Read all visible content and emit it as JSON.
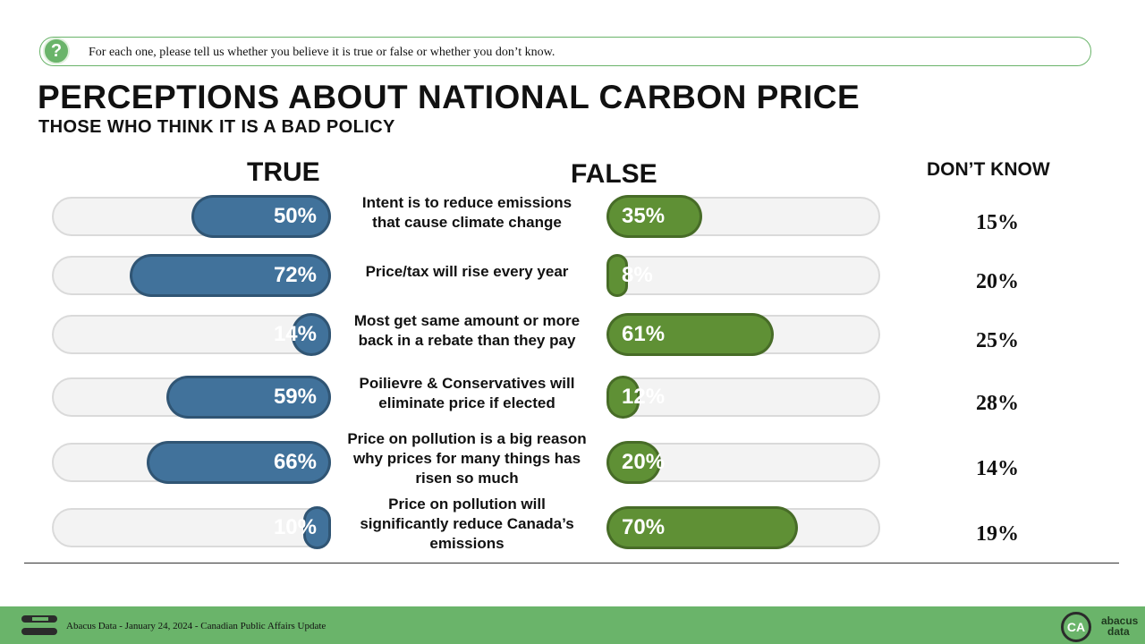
{
  "chart_data": {
    "type": "bar",
    "question_icon": "?",
    "question": "For each one, please tell us whether you believe it is true or false or whether you don’t know.",
    "title": "PERCEPTIONS ABOUT NATIONAL CARBON PRICE",
    "subtitle": "THOSE WHO THINK IT IS A BAD POLICY",
    "categories": [
      "Intent is to reduce emissions that cause climate change",
      "Price/tax will rise every year",
      "Most get same amount or more back in a rebate than they pay",
      "Poilievre & Conservatives will eliminate price if elected",
      "Price on pollution is a big reason why prices for many things has risen so much",
      "Price on pollution will significantly reduce Canada’s emissions"
    ],
    "xlim": [
      0,
      100
    ],
    "series": [
      {
        "name": "TRUE",
        "color": "#41729b",
        "values": [
          50,
          72,
          14,
          59,
          66,
          10
        ],
        "value_labels": [
          "50%",
          "72%",
          "14%",
          "59%",
          "66%",
          "10%"
        ]
      },
      {
        "name": "FALSE",
        "color": "#5f9035",
        "values": [
          35,
          8,
          61,
          12,
          20,
          70
        ],
        "value_labels": [
          "35%",
          "8%",
          "61%",
          "12%",
          "20%",
          "70%"
        ]
      },
      {
        "name": "DON’T KNOW",
        "values": [
          15,
          20,
          25,
          28,
          14,
          19
        ],
        "value_labels": [
          "15%",
          "20%",
          "25%",
          "28%",
          "14%",
          "19%"
        ]
      }
    ],
    "footer": "Abacus Data - January 24, 2024 - Canadian Public Affairs Update",
    "logo_badge": "CA",
    "logo_lines": [
      "abacus",
      "data"
    ]
  }
}
